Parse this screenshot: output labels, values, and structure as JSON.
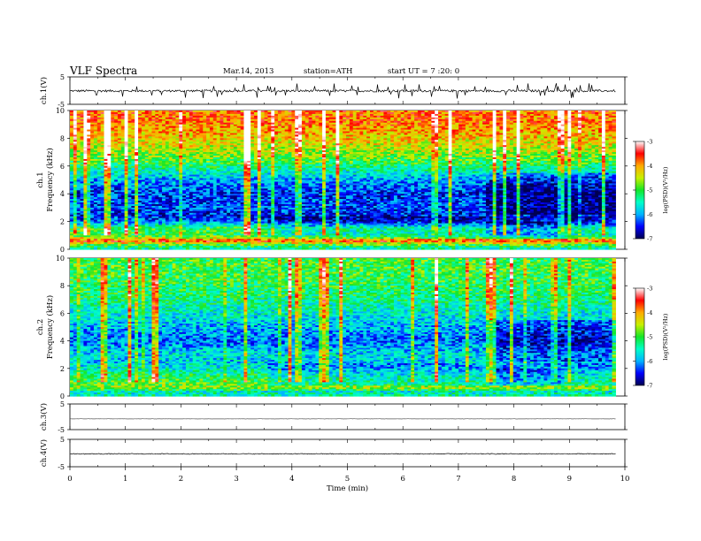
{
  "header": {
    "title": "VLF  Spectra",
    "date": "Mar.14, 2013",
    "station": "station=ATH",
    "start": "start  UT  =   7  :20: 0"
  },
  "chart_data": {
    "type": "spectrogram",
    "xlabel": "Time  (min)",
    "xlim": [
      0,
      10
    ],
    "x_ticks": [
      "0",
      "1",
      "2",
      "3",
      "4",
      "5",
      "6",
      "7",
      "8",
      "9",
      "10"
    ],
    "data_end_min": 9.83,
    "panels": [
      {
        "id": "ch1_waveform",
        "type": "line",
        "ylabel": "ch.1(V)",
        "ylim": [
          -5,
          5
        ],
        "y_ticks": [
          "5",
          "-5"
        ],
        "baseline_v": -0.1,
        "noise_amplitude_v": 0.4,
        "spike_amplitude_v": 2.5,
        "color": "#000000"
      },
      {
        "id": "ch1_spectrogram",
        "type": "heatmap",
        "ylabel_top": "ch.1",
        "ylabel": "Frequency  (kHz)",
        "ylim": [
          0,
          10
        ],
        "y_ticks": [
          "0",
          "2",
          "4",
          "6",
          "8",
          "10"
        ],
        "colorbar": {
          "label": "log(PSD)(V²/Hz)",
          "range": [
            -7,
            -3
          ],
          "ticks": [
            "-3",
            "-4",
            "-5",
            "-6",
            "-7"
          ]
        },
        "profile_logpsd": [
          {
            "f_khz": 0.0,
            "v": -5.5
          },
          {
            "f_khz": 0.3,
            "v": -5.0
          },
          {
            "f_khz": 0.6,
            "v": -3.6
          },
          {
            "f_khz": 1.0,
            "v": -5.1
          },
          {
            "f_khz": 1.5,
            "v": -5.0
          },
          {
            "f_khz": 2.0,
            "v": -6.2
          },
          {
            "f_khz": 2.5,
            "v": -6.5
          },
          {
            "f_khz": 3.0,
            "v": -6.3
          },
          {
            "f_khz": 4.0,
            "v": -6.4
          },
          {
            "f_khz": 5.0,
            "v": -6.0
          },
          {
            "f_khz": 6.0,
            "v": -5.2
          },
          {
            "f_khz": 7.0,
            "v": -4.6
          },
          {
            "f_khz": 8.0,
            "v": -4.2
          },
          {
            "f_khz": 9.0,
            "v": -3.9
          },
          {
            "f_khz": 10.0,
            "v": -3.8
          }
        ],
        "regime_changes_min": [
          3.55,
          7.5,
          8.9
        ]
      },
      {
        "id": "ch2_spectrogram",
        "type": "heatmap",
        "ylabel_top": "ch.2",
        "ylabel": "Frequency  (kHz)",
        "ylim": [
          0,
          10
        ],
        "y_ticks": [
          "0",
          "2",
          "4",
          "6",
          "8",
          "10"
        ],
        "colorbar": {
          "label": "log(PSD)(V²/Hz)",
          "range": [
            -7,
            -3
          ],
          "ticks": [
            "-3",
            "-4",
            "-5",
            "-6",
            "-7"
          ]
        },
        "profile_logpsd": [
          {
            "f_khz": 0.0,
            "v": -5.4
          },
          {
            "f_khz": 0.3,
            "v": -5.6
          },
          {
            "f_khz": 0.6,
            "v": -4.6
          },
          {
            "f_khz": 1.0,
            "v": -5.0
          },
          {
            "f_khz": 1.5,
            "v": -5.2
          },
          {
            "f_khz": 2.0,
            "v": -5.6
          },
          {
            "f_khz": 2.5,
            "v": -5.8
          },
          {
            "f_khz": 3.0,
            "v": -5.7
          },
          {
            "f_khz": 4.0,
            "v": -6.2
          },
          {
            "f_khz": 5.0,
            "v": -5.9
          },
          {
            "f_khz": 6.0,
            "v": -5.6
          },
          {
            "f_khz": 7.0,
            "v": -5.3
          },
          {
            "f_khz": 8.0,
            "v": -5.1
          },
          {
            "f_khz": 9.0,
            "v": -5.0
          },
          {
            "f_khz": 10.0,
            "v": -5.0
          }
        ],
        "regime_changes_min": [
          3.55,
          7.5,
          8.9
        ]
      },
      {
        "id": "ch3_waveform",
        "type": "line",
        "ylabel": "ch.3(V)",
        "ylim": [
          -5,
          5
        ],
        "y_ticks": [
          "5",
          "-5"
        ],
        "baseline_v": -0.8,
        "noise_amplitude_v": 0.05,
        "spike_amplitude_v": 0,
        "color": "#555555"
      },
      {
        "id": "ch4_waveform",
        "type": "line",
        "ylabel": "ch.4(V)",
        "ylim": [
          -5,
          5
        ],
        "y_ticks": [
          "5",
          "-5"
        ],
        "baseline_v": -0.3,
        "noise_amplitude_v": 0.15,
        "spike_amplitude_v": 0,
        "color": "#000000"
      }
    ]
  }
}
